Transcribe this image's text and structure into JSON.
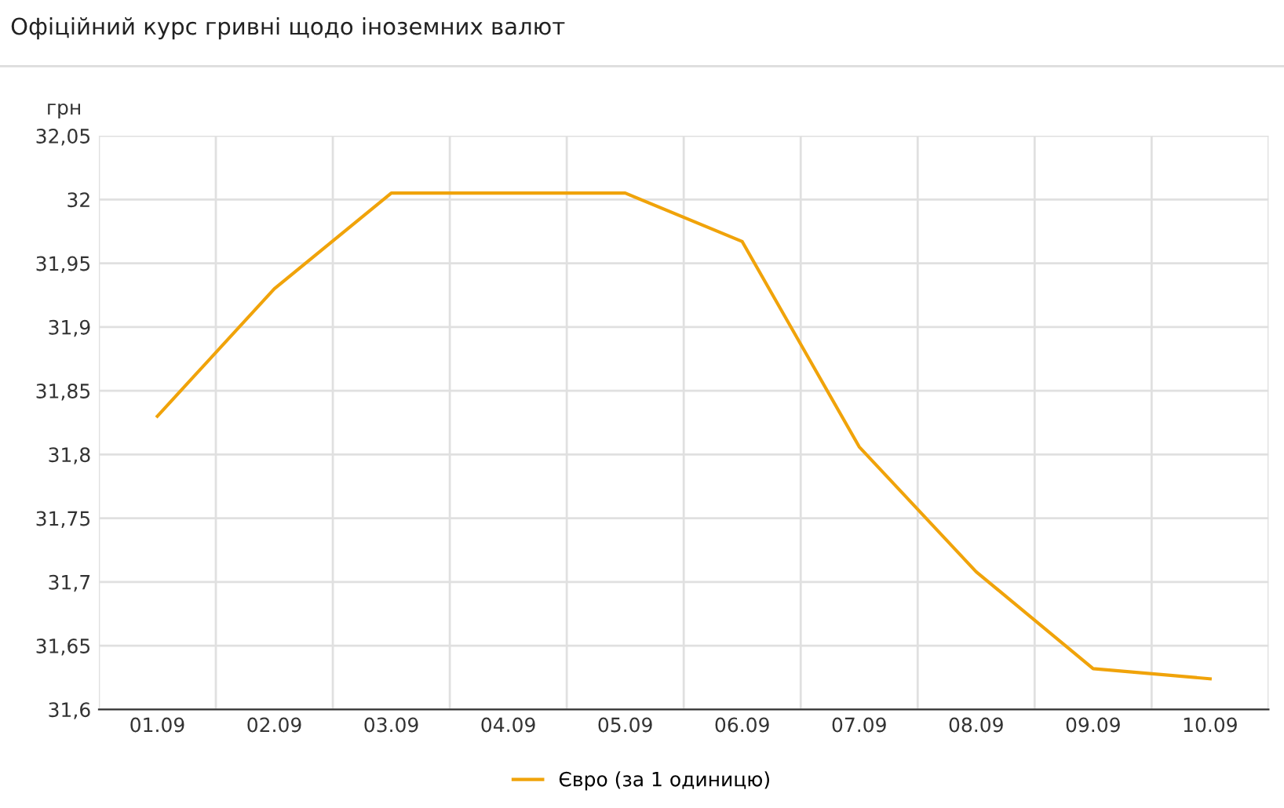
{
  "chart_data": {
    "type": "line",
    "title": "Офіційний курс гривні щодо іноземних валют",
    "ylabel": "грн",
    "categories": [
      "01.09",
      "02.09",
      "03.09",
      "04.09",
      "05.09",
      "06.09",
      "07.09",
      "08.09",
      "09.09",
      "10.09"
    ],
    "series": [
      {
        "name": "Євро (за 1 одиницю)",
        "color": "#f0a30a",
        "values": [
          31.83,
          31.93,
          32.005,
          32.005,
          32.005,
          31.967,
          31.806,
          31.708,
          31.632,
          31.624
        ]
      }
    ],
    "ylim": [
      31.6,
      32.05
    ],
    "yticks": [
      {
        "value": 31.6,
        "label": "31,6"
      },
      {
        "value": 31.65,
        "label": "31,65"
      },
      {
        "value": 31.7,
        "label": "31,7"
      },
      {
        "value": 31.75,
        "label": "31,75"
      },
      {
        "value": 31.8,
        "label": "31,8"
      },
      {
        "value": 31.85,
        "label": "31,85"
      },
      {
        "value": 31.9,
        "label": "31,9"
      },
      {
        "value": 31.95,
        "label": "31,95"
      },
      {
        "value": 32,
        "label": "32"
      },
      {
        "value": 32.05,
        "label": "32,05"
      }
    ],
    "grid": true,
    "legend": "bottom",
    "marker": "none",
    "line_style": "solid"
  }
}
